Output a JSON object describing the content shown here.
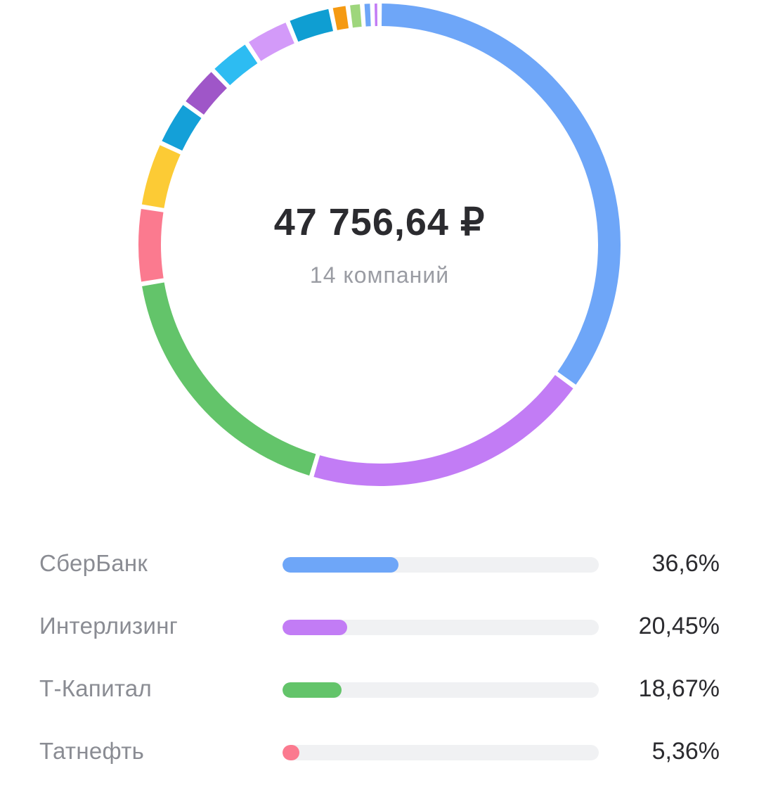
{
  "summary": {
    "total": "47 756,64 ₽",
    "companies": "14 компаний"
  },
  "chart_data": {
    "type": "pie",
    "variant": "donut",
    "slices": [
      {
        "name": "СберБанк",
        "value": 36.6,
        "color": "#6ea6f8"
      },
      {
        "name": "Интерлизинг",
        "value": 20.45,
        "color": "#c27cf5"
      },
      {
        "name": "Т-Капитал",
        "value": 18.67,
        "color": "#63c46a"
      },
      {
        "name": "Татнефть",
        "value": 5.36,
        "color": "#fb7a8f"
      },
      {
        "value": 4.6,
        "color": "#fccb35"
      },
      {
        "value": 3.2,
        "color": "#14a0d8"
      },
      {
        "value": 3.0,
        "color": "#9f56c8"
      },
      {
        "value": 3.0,
        "color": "#2dbcf2"
      },
      {
        "value": 3.2,
        "color": "#d39af9"
      },
      {
        "value": 3.1,
        "color": "#0f9ed2"
      },
      {
        "value": 1.2,
        "color": "#f59a12"
      },
      {
        "value": 1.0,
        "color": "#9ed67c"
      },
      {
        "value": 0.7,
        "color": "#6ea6f8"
      },
      {
        "value": 0.5,
        "color": "#c27cf5"
      }
    ]
  },
  "list": [
    {
      "name": "СберБанк",
      "percent": "36,6%",
      "value": 36.6,
      "color": "#6ea6f8"
    },
    {
      "name": "Интерлизинг",
      "percent": "20,45%",
      "value": 20.45,
      "color": "#c27cf5"
    },
    {
      "name": "Т-Капитал",
      "percent": "18,67%",
      "value": 18.67,
      "color": "#63c46a"
    },
    {
      "name": "Татнефть",
      "percent": "5,36%",
      "value": 5.36,
      "color": "#fb7a8f"
    }
  ]
}
